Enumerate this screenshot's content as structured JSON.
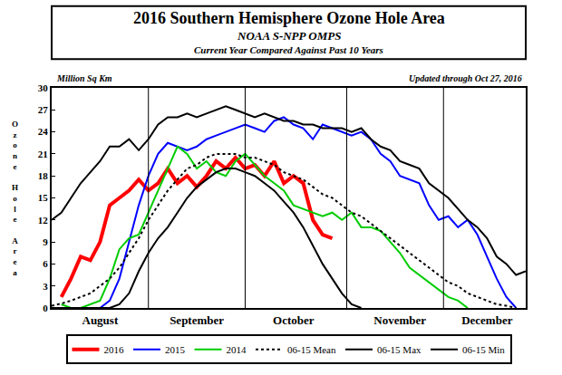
{
  "chart_data": {
    "type": "line",
    "title": "2016 Southern Hemisphere Ozone Hole Area",
    "subtitle": "NOAA S-NPP OMPS",
    "annotations": [
      "Current Year Compared Against Past 10 Years",
      "Million Sq Km",
      "Updated through Oct 27, 2016"
    ],
    "y_label": "Ozone Hole Area",
    "categories": [
      null,
      null,
      null,
      null,
      null,
      "August",
      null,
      null,
      null,
      null,
      null,
      null,
      null,
      null,
      null,
      "September",
      null,
      null,
      null,
      null,
      null,
      null,
      null,
      null,
      null,
      "October",
      null,
      null,
      null,
      null,
      null,
      null,
      null,
      null,
      null,
      null,
      "November",
      null,
      null,
      null,
      null,
      null,
      null,
      null,
      null,
      "December",
      null,
      null,
      null,
      null
    ],
    "series": [
      {
        "name": "2016",
        "color": "#ff0000",
        "line_style": "solid",
        "values": [
          null,
          1.5,
          4,
          7,
          6.5,
          9,
          14,
          15,
          16,
          17.5,
          16,
          17,
          19,
          17,
          18,
          16.5,
          18,
          20,
          19,
          20.5,
          19,
          19.5,
          18,
          20,
          17,
          18,
          17,
          12,
          10,
          9.5,
          null,
          null,
          null,
          null,
          null,
          null,
          null,
          null,
          null,
          null,
          null,
          null,
          null,
          null,
          null,
          null,
          null,
          null,
          null,
          null
        ]
      },
      {
        "name": "2015",
        "color": "#0000ff",
        "line_style": "solid",
        "values": [
          null,
          null,
          null,
          null,
          null,
          0,
          1,
          4,
          9,
          14,
          18,
          21,
          22.5,
          22,
          21.5,
          22,
          23,
          23.5,
          24,
          24.5,
          25,
          24.5,
          24,
          25.5,
          26,
          25,
          24.5,
          23,
          25,
          24.5,
          24,
          23.5,
          24,
          23,
          21,
          20,
          18,
          17.5,
          17,
          14,
          12,
          12.5,
          11,
          12,
          10,
          7,
          4,
          1.5,
          0,
          null
        ]
      },
      {
        "name": "2014",
        "color": "#00cc00",
        "line_style": "solid",
        "values": [
          null,
          0.5,
          0,
          0,
          0.5,
          1,
          4,
          8,
          9.5,
          10,
          13,
          16,
          19,
          22,
          21,
          19,
          20,
          18.5,
          18,
          20,
          21,
          19.5,
          18,
          17,
          16,
          14,
          13.5,
          13,
          12.5,
          13,
          12,
          13,
          11,
          11,
          10.5,
          9,
          7.5,
          5.5,
          4.5,
          3.5,
          2.5,
          1.5,
          1,
          0,
          null,
          null,
          null,
          null,
          null,
          null
        ]
      },
      {
        "name": "06-15 Mean",
        "color": "#000000",
        "line_style": "dotted",
        "values": [
          0.3,
          0.6,
          1,
          1.5,
          2,
          3,
          4,
          5.5,
          7.5,
          9.5,
          12,
          14,
          16,
          17.5,
          19,
          19.5,
          20.5,
          21,
          21,
          21,
          20.5,
          20.5,
          20,
          19.5,
          18.5,
          18,
          17.5,
          16.5,
          15.5,
          15,
          14,
          13,
          12.5,
          11.5,
          10.5,
          9.5,
          8.5,
          7.5,
          6.5,
          5.5,
          4.5,
          3.5,
          3,
          2,
          1.5,
          1,
          0.5,
          0.3,
          0,
          null
        ]
      },
      {
        "name": "06-15 Max",
        "color": "#000000",
        "line_style": "solid",
        "values": [
          12,
          13,
          15,
          17,
          18.5,
          20,
          22,
          22,
          23,
          21.5,
          23,
          25,
          26,
          26,
          26.5,
          26,
          26.5,
          27,
          27.5,
          27,
          26.5,
          26,
          26.5,
          26,
          25.5,
          25.5,
          25,
          25,
          24.5,
          24.5,
          24.5,
          24,
          24.5,
          23,
          22,
          21.5,
          20,
          19.5,
          19,
          17,
          16,
          15,
          13.5,
          12,
          11,
          9.5,
          7,
          6,
          4.5,
          5
        ]
      },
      {
        "name": "06-15 Min",
        "color": "#000000",
        "line_style": "solid",
        "values": [
          0,
          0,
          0,
          0,
          0,
          0,
          0,
          0.5,
          2,
          5,
          7.5,
          9.5,
          11,
          13,
          15,
          16.5,
          17.5,
          18.5,
          19,
          19,
          18.5,
          18,
          17,
          16,
          14.5,
          13,
          11,
          8.5,
          6,
          4,
          2,
          0.5,
          0,
          null,
          null,
          null,
          null,
          null,
          null,
          null,
          null,
          null,
          null,
          null,
          null,
          null,
          null,
          null,
          null,
          null
        ]
      }
    ],
    "ylim": [
      0,
      30
    ],
    "yticks": [
      0,
      3,
      6,
      9,
      12,
      15,
      18,
      21,
      24,
      27,
      30
    ],
    "grid": true,
    "legend": "bottom"
  }
}
